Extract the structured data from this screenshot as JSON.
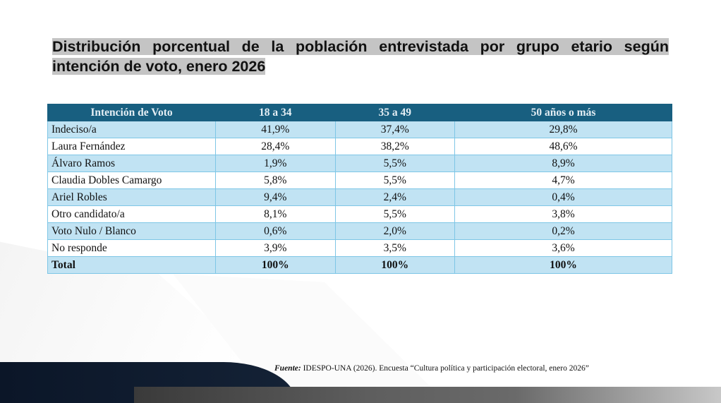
{
  "title": "Distribución porcentual de la población entrevistada por grupo etario según intención de voto, enero 2026",
  "table": {
    "headers": [
      "Intención de Voto",
      "18 a 34",
      "35 a 49",
      "50 años o más"
    ],
    "rows": [
      [
        "Indeciso/a",
        "41,9%",
        "37,4%",
        "29,8%"
      ],
      [
        "Laura Fernández",
        "28,4%",
        "38,2%",
        "48,6%"
      ],
      [
        "Álvaro Ramos",
        "1,9%",
        "5,5%",
        "8,9%"
      ],
      [
        "Claudia Dobles Camargo",
        "5,8%",
        "5,5%",
        "4,7%"
      ],
      [
        "Ariel Robles",
        "9,4%",
        "2,4%",
        "0,4%"
      ],
      [
        "Otro candidato/a",
        "8,1%",
        "5,5%",
        "3,8%"
      ],
      [
        "Voto Nulo / Blanco",
        "0,6%",
        "2,0%",
        "0,2%"
      ],
      [
        "No responde",
        "3,9%",
        "3,5%",
        "3,6%"
      ]
    ],
    "total": [
      "Total",
      "100%",
      "100%",
      "100%"
    ]
  },
  "source": {
    "label": "Fuente:",
    "text": " IDESPO-UNA (2026). Encuesta “Cultura política y participación electoral, enero 2026”"
  },
  "colors": {
    "header": "#185f80",
    "row_alt": "#c1e3f3"
  }
}
